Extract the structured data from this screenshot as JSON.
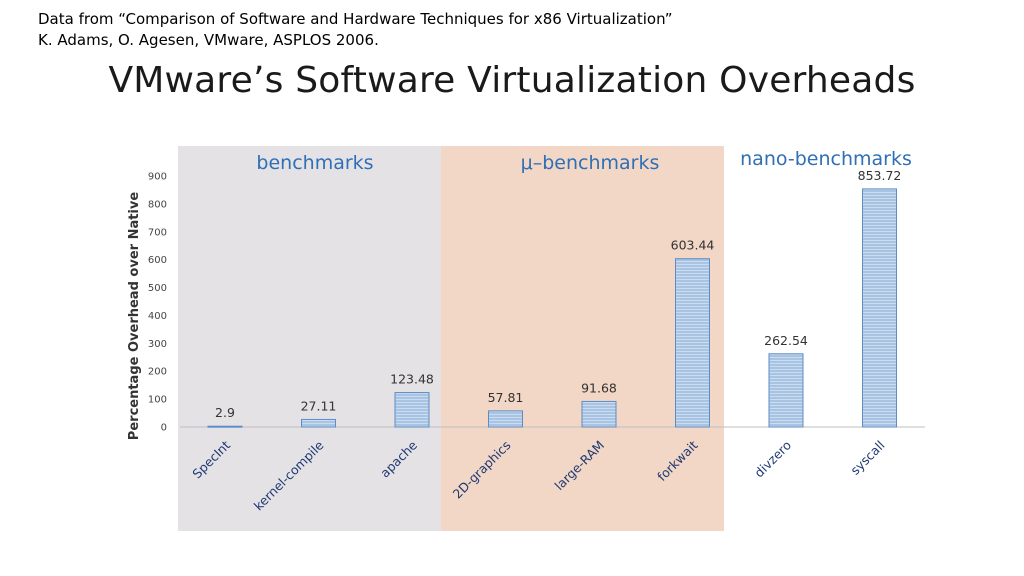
{
  "header": {
    "source_line1": "Data from “Comparison of Software and Hardware Techniques for x86 Virtualization”",
    "source_line2": "K. Adams, O. Agesen, VMware, ASPLOS 2006.",
    "title": "VMware’s Software Virtualization Overheads"
  },
  "colors": {
    "benchmarks_bg": "#e5e2e6",
    "micro_bg": "#f2d7c6",
    "bar_fill": "#a8c4e2",
    "bar_edge": "#5d8dc4",
    "group_label": "#2e6fb5"
  },
  "chart_data": {
    "type": "bar",
    "ylabel": "Percentage Overhead over Native",
    "ylim": [
      0,
      900
    ],
    "yticks": [
      "0",
      "100",
      "200",
      "300",
      "400",
      "500",
      "600",
      "700",
      "800",
      "900"
    ],
    "grid": false,
    "categories": [
      "SpecInt",
      "kernel-compile",
      "apache",
      "2D-graphics",
      "large-RAM",
      "forkwait",
      "divzero",
      "syscall"
    ],
    "values": [
      2.9,
      27.11,
      123.48,
      57.81,
      91.68,
      603.44,
      262.54,
      853.72
    ],
    "value_labels": [
      "2.9",
      "27.11",
      "123.48",
      "57.81",
      "91.68",
      "603.44",
      "262.54",
      "853.72"
    ],
    "groups": [
      {
        "label": "benchmarks",
        "members": [
          "SpecInt",
          "kernel-compile",
          "apache"
        ]
      },
      {
        "label": "μ–benchmarks",
        "members": [
          "2D-graphics",
          "large-RAM",
          "forkwait"
        ]
      },
      {
        "label": "nano-benchmarks",
        "members": [
          "divzero",
          "syscall"
        ]
      }
    ]
  }
}
